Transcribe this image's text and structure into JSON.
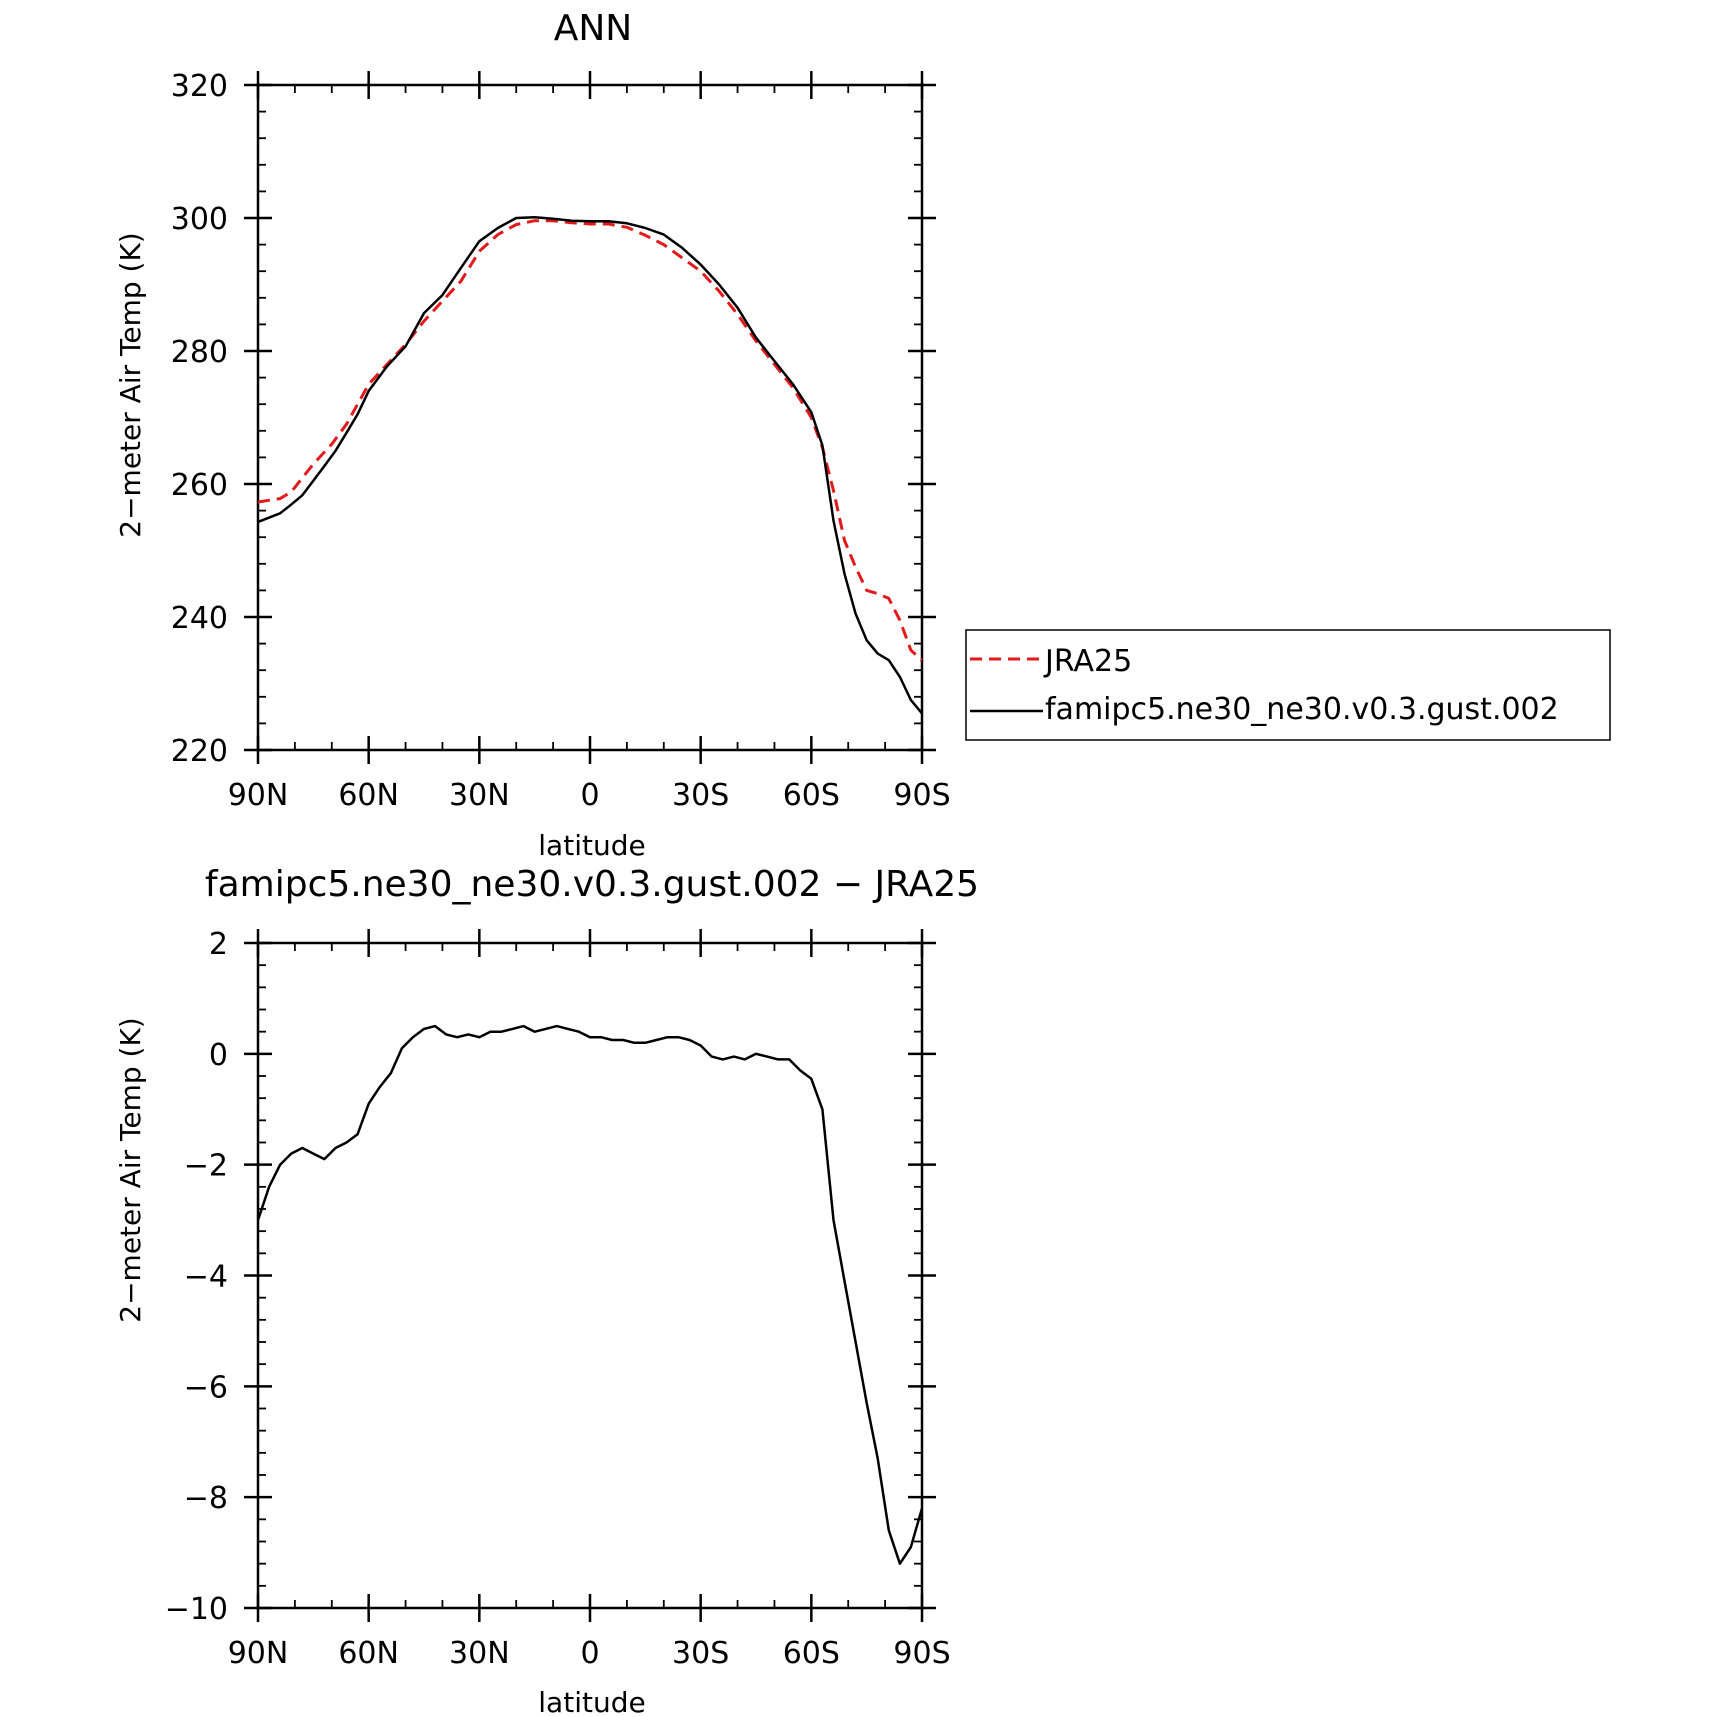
{
  "colors": {
    "jra25": "#e31a1c",
    "model": "#000000"
  },
  "x_tick_labels": [
    "90N",
    "60N",
    "30N",
    "0",
    "30S",
    "60S",
    "90S"
  ],
  "chart_data": [
    {
      "type": "line",
      "title": "ANN",
      "xlabel": "latitude",
      "ylabel": "2−meter Air Temp (K)",
      "xlim": [
        90,
        -90
      ],
      "ylim": [
        220,
        320
      ],
      "y_ticks": [
        220,
        240,
        260,
        280,
        300,
        320
      ],
      "x_ticks": [
        90,
        60,
        30,
        0,
        -30,
        -60,
        -90
      ],
      "grid": false,
      "legend_position": "right",
      "series": [
        {
          "name": "JRA25",
          "style": "dashed",
          "color": "#e31a1c",
          "x": [
            90,
            84,
            81,
            75,
            70,
            66,
            60,
            55,
            50,
            45,
            40,
            35,
            30,
            25,
            20,
            15,
            10,
            5,
            0,
            -5,
            -10,
            -15,
            -20,
            -25,
            -30,
            -35,
            -40,
            -45,
            -50,
            -55,
            -60,
            -63,
            -66,
            -69,
            -72,
            -75,
            -78,
            -81,
            -84,
            -87,
            -90
          ],
          "y": [
            257.3,
            257.8,
            258.8,
            263,
            266,
            269,
            275,
            278,
            281,
            284.5,
            287.5,
            290.5,
            295,
            297.5,
            299,
            299.6,
            299.6,
            299.3,
            299.1,
            299.1,
            298.6,
            297.4,
            296,
            294,
            292,
            289,
            285.5,
            281.5,
            278,
            274.5,
            270,
            265.5,
            259,
            251.5,
            247.5,
            244,
            243.5,
            242.8,
            239.5,
            235,
            233.5
          ]
        },
        {
          "name": "famipc5.ne30_ne30.v0.3.gust.002",
          "style": "solid",
          "color": "#000000",
          "x": [
            90,
            84,
            81,
            78,
            75,
            72,
            69,
            66,
            63,
            60,
            55,
            50,
            45,
            40,
            35,
            30,
            25,
            20,
            15,
            10,
            5,
            0,
            -5,
            -10,
            -15,
            -20,
            -25,
            -30,
            -35,
            -40,
            -45,
            -50,
            -55,
            -60,
            -63,
            -66,
            -69,
            -72,
            -75,
            -78,
            -81,
            -84,
            -87,
            -90
          ],
          "y": [
            254.3,
            255.6,
            256.9,
            258.3,
            260.5,
            262.7,
            265,
            267.7,
            270.5,
            274,
            277.7,
            280.7,
            285.7,
            288.4,
            292.5,
            296.5,
            298.5,
            300,
            300.1,
            299.9,
            299.6,
            299.5,
            299.5,
            299.2,
            298.5,
            297.5,
            295.5,
            293,
            290,
            286.5,
            282,
            278.5,
            275,
            270.8,
            265.8,
            254.5,
            246.5,
            240.5,
            236.5,
            234.5,
            233.5,
            231,
            227.5,
            225.5
          ]
        }
      ]
    },
    {
      "type": "line",
      "title": "famipc5.ne30_ne30.v0.3.gust.002 − JRA25",
      "xlabel": "latitude",
      "ylabel": "2−meter Air Temp (K)",
      "xlim": [
        90,
        -90
      ],
      "ylim": [
        -10,
        2
      ],
      "y_ticks": [
        -10,
        -8,
        -6,
        -4,
        -2,
        0,
        2
      ],
      "x_ticks": [
        90,
        60,
        30,
        0,
        -30,
        -60,
        -90
      ],
      "grid": false,
      "series": [
        {
          "style": "solid",
          "color": "#000000",
          "x": [
            90,
            87,
            84,
            81,
            78,
            75,
            72,
            69,
            66,
            63,
            60,
            57,
            54,
            51,
            48,
            45,
            42,
            39,
            36,
            33,
            30,
            27,
            24,
            21,
            18,
            15,
            12,
            9,
            6,
            3,
            0,
            -3,
            -6,
            -9,
            -12,
            -15,
            -18,
            -21,
            -24,
            -27,
            -30,
            -33,
            -36,
            -39,
            -42,
            -45,
            -48,
            -51,
            -54,
            -57,
            -60,
            -63,
            -66,
            -69,
            -72,
            -75,
            -78,
            -81,
            -84,
            -87,
            -90
          ],
          "y": [
            -3.0,
            -2.4,
            -2.0,
            -1.8,
            -1.7,
            -1.8,
            -1.9,
            -1.7,
            -1.6,
            -1.45,
            -0.9,
            -0.6,
            -0.35,
            0.1,
            0.3,
            0.45,
            0.5,
            0.35,
            0.3,
            0.35,
            0.3,
            0.4,
            0.4,
            0.45,
            0.5,
            0.4,
            0.45,
            0.5,
            0.45,
            0.4,
            0.3,
            0.3,
            0.25,
            0.25,
            0.2,
            0.2,
            0.25,
            0.3,
            0.3,
            0.25,
            0.15,
            -0.05,
            -0.1,
            -0.05,
            -0.1,
            0.0,
            -0.05,
            -0.1,
            -0.1,
            -0.3,
            -0.45,
            -1.0,
            -3.0,
            -4.1,
            -5.2,
            -6.3,
            -7.3,
            -8.6,
            -9.2,
            -8.9,
            -8.2
          ]
        }
      ]
    }
  ]
}
